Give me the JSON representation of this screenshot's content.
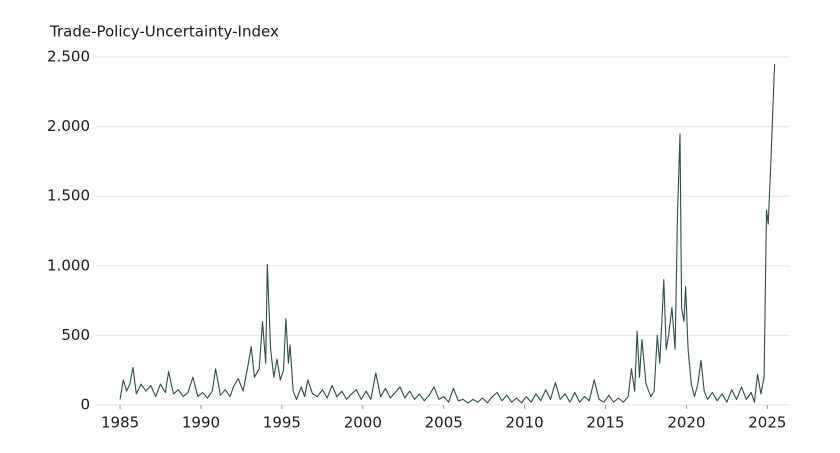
{
  "chart_data": {
    "type": "line",
    "title": "Trade-Policy-Uncertainty-Index",
    "x": [
      1985.0,
      1985.2,
      1985.4,
      1985.6,
      1985.8,
      1986.0,
      1986.3,
      1986.6,
      1986.9,
      1987.2,
      1987.5,
      1987.8,
      1988.0,
      1988.3,
      1988.6,
      1988.9,
      1989.2,
      1989.5,
      1989.8,
      1990.1,
      1990.4,
      1990.7,
      1990.9,
      1991.2,
      1991.5,
      1991.8,
      1992.0,
      1992.3,
      1992.6,
      1992.9,
      1993.1,
      1993.3,
      1993.6,
      1993.8,
      1994.0,
      1994.1,
      1994.3,
      1994.5,
      1994.7,
      1994.9,
      1995.1,
      1995.25,
      1995.4,
      1995.5,
      1995.7,
      1995.9,
      1996.2,
      1996.4,
      1996.6,
      1996.9,
      1997.2,
      1997.5,
      1997.8,
      1998.1,
      1998.4,
      1998.7,
      1999.0,
      1999.3,
      1999.6,
      1999.9,
      2000.2,
      2000.5,
      2000.8,
      2001.1,
      2001.4,
      2001.7,
      2002.0,
      2002.3,
      2002.6,
      2002.9,
      2003.2,
      2003.5,
      2003.8,
      2004.1,
      2004.4,
      2004.7,
      2005.0,
      2005.3,
      2005.6,
      2005.9,
      2006.2,
      2006.5,
      2006.8,
      2007.1,
      2007.4,
      2007.7,
      2008.0,
      2008.3,
      2008.6,
      2008.9,
      2009.2,
      2009.5,
      2009.8,
      2010.1,
      2010.4,
      2010.7,
      2011.0,
      2011.3,
      2011.6,
      2011.9,
      2012.2,
      2012.5,
      2012.8,
      2013.1,
      2013.4,
      2013.7,
      2014.0,
      2014.3,
      2014.6,
      2014.9,
      2015.2,
      2015.5,
      2015.8,
      2016.1,
      2016.4,
      2016.6,
      2016.8,
      2016.95,
      2017.1,
      2017.25,
      2017.5,
      2017.8,
      2018.0,
      2018.2,
      2018.35,
      2018.5,
      2018.6,
      2018.75,
      2018.9,
      2019.1,
      2019.3,
      2019.45,
      2019.6,
      2019.7,
      2019.85,
      2019.95,
      2020.1,
      2020.3,
      2020.5,
      2020.7,
      2020.9,
      2021.1,
      2021.3,
      2021.6,
      2021.9,
      2022.2,
      2022.5,
      2022.8,
      2023.1,
      2023.4,
      2023.7,
      2024.0,
      2024.2,
      2024.4,
      2024.6,
      2024.8,
      2024.95,
      2025.05,
      2025.2,
      2025.45
    ],
    "series": [
      {
        "name": "Trade-Policy-Uncertainty-Index",
        "color": "#2f4a4a",
        "values": [
          40,
          180,
          100,
          150,
          270,
          80,
          150,
          100,
          140,
          60,
          150,
          90,
          240,
          80,
          110,
          60,
          90,
          200,
          60,
          90,
          50,
          100,
          260,
          70,
          110,
          60,
          130,
          190,
          100,
          280,
          420,
          200,
          260,
          600,
          300,
          1010,
          400,
          200,
          330,
          180,
          250,
          620,
          300,
          430,
          100,
          40,
          130,
          60,
          180,
          80,
          60,
          110,
          50,
          140,
          60,
          100,
          40,
          80,
          110,
          40,
          100,
          40,
          230,
          60,
          120,
          50,
          90,
          130,
          50,
          100,
          40,
          80,
          30,
          70,
          130,
          40,
          60,
          20,
          120,
          30,
          40,
          15,
          40,
          20,
          50,
          15,
          60,
          90,
          30,
          70,
          20,
          50,
          15,
          60,
          20,
          80,
          30,
          110,
          40,
          160,
          40,
          80,
          20,
          90,
          20,
          60,
          30,
          180,
          40,
          20,
          70,
          20,
          50,
          20,
          60,
          260,
          100,
          530,
          200,
          470,
          150,
          60,
          100,
          500,
          300,
          650,
          900,
          400,
          500,
          700,
          400,
          1370,
          1950,
          700,
          600,
          850,
          400,
          150,
          60,
          150,
          320,
          100,
          40,
          90,
          30,
          80,
          20,
          110,
          40,
          130,
          40,
          90,
          20,
          220,
          80,
          200,
          1400,
          1300,
          1700,
          2450
        ]
      }
    ],
    "xlim": [
      1983.45,
      2026.4
    ],
    "xticks": [
      1985,
      1990,
      1995,
      2000,
      2005,
      2010,
      2015,
      2020,
      2025
    ],
    "ylim": [
      0,
      2500
    ],
    "yticks": [
      0,
      500,
      {
        "value": 1000,
        "label": "1.000"
      },
      {
        "value": 1500,
        "label": "1.500"
      },
      {
        "value": 2000,
        "label": "2.000"
      },
      {
        "value": 2500,
        "label": "2.500"
      }
    ],
    "grid": true
  }
}
